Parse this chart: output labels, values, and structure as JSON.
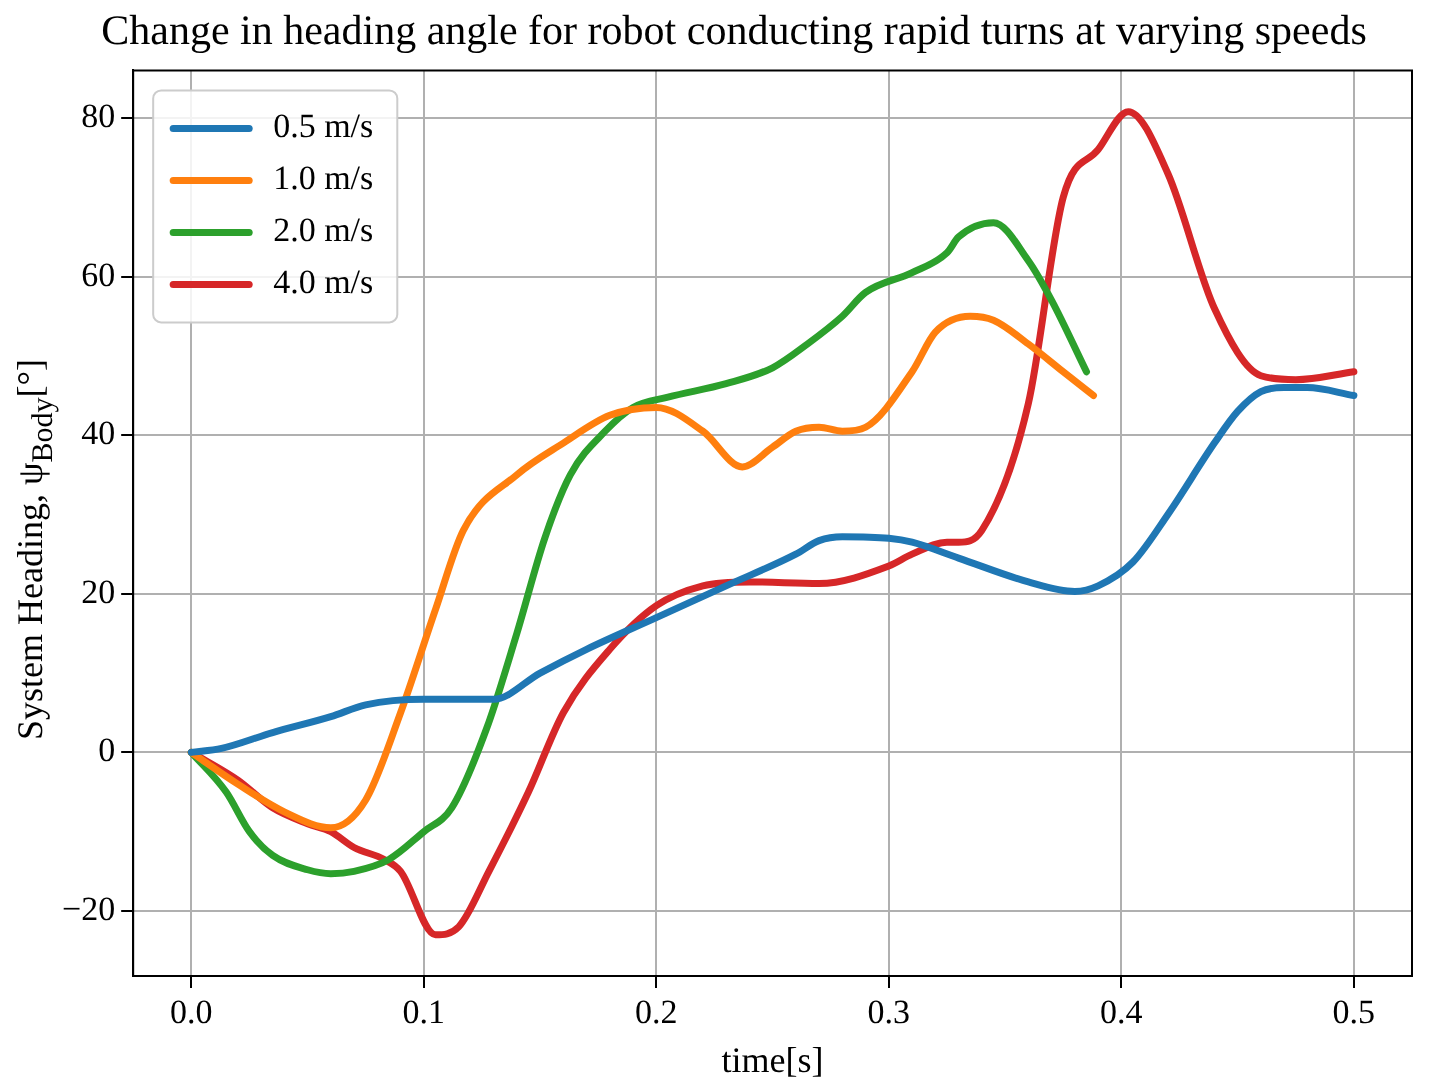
{
  "chart_data": {
    "type": "line",
    "title": "Change in heading angle for robot conducting rapid turns at varying speeds",
    "xlabel": "time[s]",
    "ylabel": "System Heading, ψ$_{Body}$[°]",
    "xlim": [
      -0.025,
      0.525
    ],
    "ylim": [
      -28.2,
      86
    ],
    "xticks": [
      {
        "value": 0,
        "label": "0.0"
      },
      {
        "value": 0.1,
        "label": "0.1"
      },
      {
        "value": 0.2,
        "label": "0.2"
      },
      {
        "value": 0.3,
        "label": "0.3"
      },
      {
        "value": 0.4,
        "label": "0.4"
      },
      {
        "value": 0.5,
        "label": "0.5"
      }
    ],
    "yticks": [
      {
        "value": -20,
        "label": "−20"
      },
      0,
      20,
      40,
      60,
      80
    ],
    "grid": true,
    "legend": "top left",
    "marker": "none",
    "line_style": "solid",
    "series": [
      {
        "name": "0.5 m/s",
        "color": "#1f77b4",
        "x": [
          0,
          0.013,
          0.035,
          0.06,
          0.075,
          0.1,
          0.13,
          0.15,
          0.17,
          0.2,
          0.23,
          0.26,
          0.27,
          0.28,
          0.3,
          0.31,
          0.33,
          0.36,
          0.38,
          0.39,
          0.405,
          0.42,
          0.44,
          0.45,
          0.46,
          0.47,
          0.48,
          0.5
        ],
        "values": [
          0,
          0.5,
          2.5,
          4.5,
          6,
          6.7,
          6.7,
          10,
          13,
          17,
          21,
          25,
          26.7,
          27.2,
          27,
          26.5,
          24.5,
          21.5,
          20.3,
          21,
          24,
          30,
          39,
          43,
          45.5,
          46,
          46,
          45
        ]
      },
      {
        "name": "1.0 m/s",
        "color": "#ff7f0e",
        "x": [
          0,
          0.02,
          0.04,
          0.06,
          0.075,
          0.09,
          0.105,
          0.117,
          0.14,
          0.16,
          0.18,
          0.2,
          0.22,
          0.237,
          0.25,
          0.26,
          0.27,
          0.28,
          0.29,
          0.31,
          0.32,
          0.335,
          0.345,
          0.36,
          0.375,
          0.388
        ],
        "values": [
          0,
          -4,
          -7.5,
          -9.5,
          -6,
          5,
          18,
          28,
          35,
          39,
          42.5,
          43.5,
          40.5,
          36,
          38.5,
          40.5,
          41,
          40.5,
          41,
          48,
          53,
          55,
          54.5,
          51.5,
          48,
          45
        ]
      },
      {
        "name": "2.0 m/s",
        "color": "#2ca02c",
        "x": [
          0,
          0.015,
          0.025,
          0.035,
          0.05,
          0.06,
          0.07,
          0.085,
          0.1,
          0.112,
          0.127,
          0.14,
          0.152,
          0.163,
          0.178,
          0.19,
          0.205,
          0.23,
          0.25,
          0.265,
          0.28,
          0.29,
          0.31,
          0.325,
          0.33,
          0.345,
          0.36,
          0.37,
          0.385
        ],
        "values": [
          0,
          -5,
          -10,
          -13,
          -14.8,
          -15.3,
          -15,
          -13.5,
          -10,
          -7,
          3,
          15,
          27,
          35,
          40.5,
          43.5,
          44.8,
          46.5,
          48.5,
          51.5,
          55,
          58,
          60.5,
          63,
          65,
          66.8,
          62,
          57,
          48
        ]
      },
      {
        "name": "4.0 m/s",
        "color": "#d62728",
        "x": [
          0,
          0.02,
          0.035,
          0.05,
          0.06,
          0.07,
          0.083,
          0.09,
          0.105,
          0.115,
          0.128,
          0.145,
          0.16,
          0.18,
          0.2,
          0.22,
          0.24,
          0.27,
          0.3,
          0.31,
          0.325,
          0.33,
          0.34,
          0.36,
          0.375,
          0.39,
          0.403,
          0.42,
          0.44,
          0.46,
          0.475,
          0.5
        ],
        "values": [
          0,
          -3.5,
          -7,
          -9,
          -10,
          -12,
          -13.5,
          -15,
          -23,
          -22,
          -15,
          -5,
          5,
          13,
          18.5,
          21,
          21.5,
          21.3,
          23.5,
          25,
          26.5,
          26.5,
          28,
          44,
          70,
          76,
          80.8,
          73,
          56,
          47.5,
          47,
          48
        ]
      }
    ]
  }
}
